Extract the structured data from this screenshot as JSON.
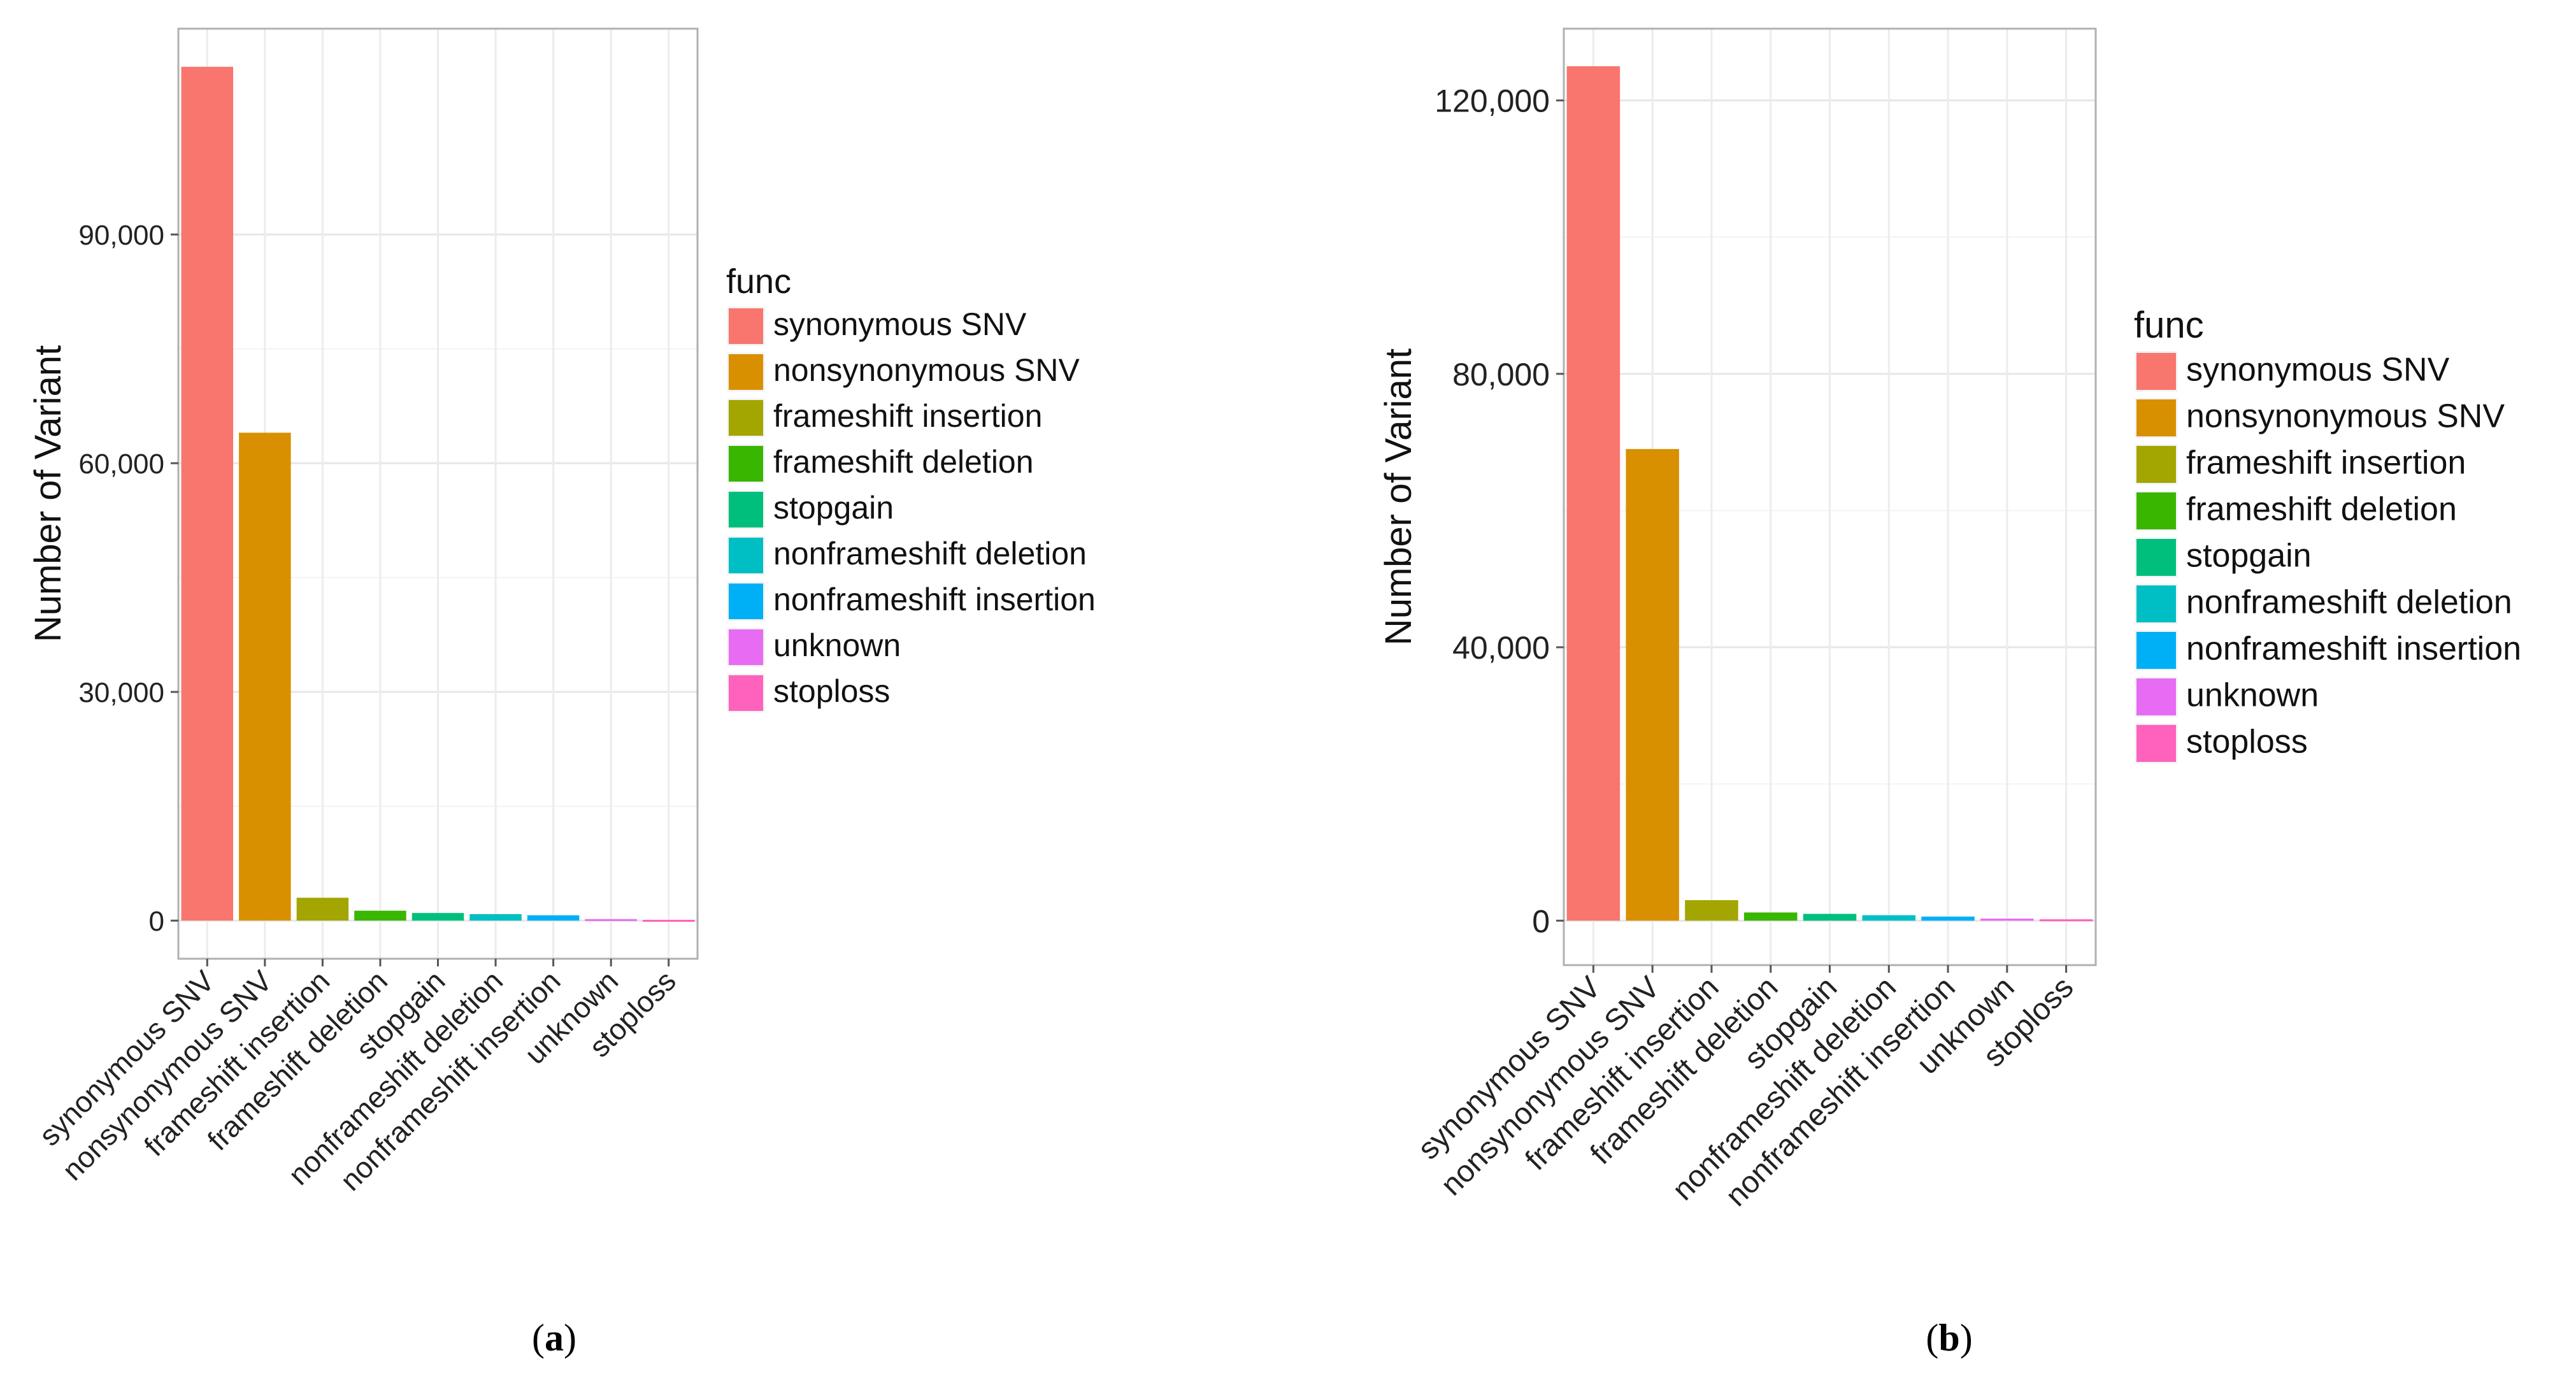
{
  "figure": {
    "captions": [
      "(a)",
      "(b)"
    ],
    "caption_letters": [
      "a",
      "b"
    ]
  },
  "legend": {
    "title": "func",
    "entries": [
      {
        "label": "synonymous SNV",
        "color": "#F8766D"
      },
      {
        "label": "nonsynonymous SNV",
        "color": "#D89000"
      },
      {
        "label": "frameshift insertion",
        "color": "#A3A500"
      },
      {
        "label": "frameshift deletion",
        "color": "#39B600"
      },
      {
        "label": "stopgain",
        "color": "#00BF7D"
      },
      {
        "label": "nonframeshift deletion",
        "color": "#00BFC4"
      },
      {
        "label": "nonframeshift insertion",
        "color": "#00B0F6"
      },
      {
        "label": "unknown",
        "color": "#E76BF3"
      },
      {
        "label": "stoploss",
        "color": "#FF62BC"
      }
    ]
  },
  "chart_data": [
    {
      "type": "bar",
      "panel": "a",
      "title": "",
      "xlabel": "",
      "ylabel": "Number of Variant",
      "categories": [
        "synonymous SNV",
        "nonsynonymous SNV",
        "frameshift insertion",
        "frameshift deletion",
        "stopgain",
        "nonframeshift deletion",
        "nonframeshift insertion",
        "unknown",
        "stoploss"
      ],
      "values": [
        112000,
        64000,
        3000,
        1300,
        1000,
        850,
        700,
        200,
        100
      ],
      "yticks": [
        0,
        30000,
        60000,
        90000
      ],
      "ytick_labels": [
        "0",
        "30,000",
        "60,000",
        "90,000"
      ],
      "ylim": [
        -5000,
        117000
      ],
      "grid": true,
      "legend": "right"
    },
    {
      "type": "bar",
      "panel": "b",
      "title": "",
      "xlabel": "",
      "ylabel": "Number of Variant",
      "categories": [
        "synonymous SNV",
        "nonsynonymous SNV",
        "frameshift insertion",
        "frameshift deletion",
        "stopgain",
        "nonframeshift deletion",
        "nonframeshift insertion",
        "unknown",
        "stoploss"
      ],
      "values": [
        125000,
        69000,
        3000,
        1200,
        1000,
        800,
        600,
        300,
        200
      ],
      "yticks": [
        0,
        40000,
        80000,
        120000
      ],
      "ytick_labels": [
        "0",
        "40,000",
        "80,000",
        "120,000"
      ],
      "ylim": [
        -6500,
        130500
      ],
      "grid": true,
      "legend": "right"
    }
  ]
}
